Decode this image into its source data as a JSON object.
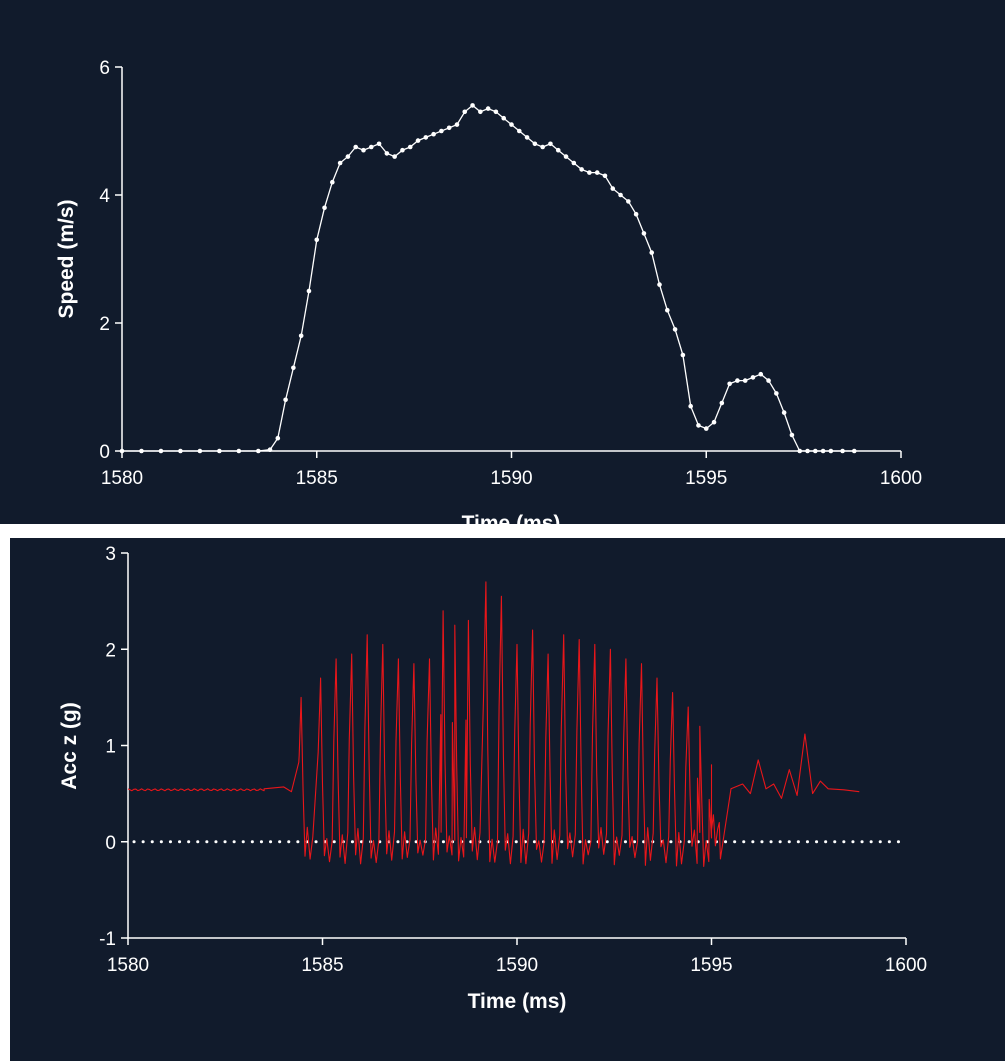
{
  "colors": {
    "background": "#111b2c",
    "axis": "#ffffff",
    "speed_series": "#ffffff",
    "acc_series": "#e8161a",
    "zero_line": "#ffffff"
  },
  "chart_data": [
    {
      "type": "line",
      "title": "",
      "xlabel": "Time (ms)",
      "ylabel": "Speed (m/s)",
      "xlim": [
        1580,
        1600
      ],
      "ylim": [
        0,
        6
      ],
      "xticks": [
        1580,
        1585,
        1590,
        1595,
        1600
      ],
      "yticks": [
        0,
        2,
        4,
        6
      ],
      "markers": true,
      "grid": false,
      "series": [
        {
          "x": [
            1580,
            1580.5,
            1581,
            1581.5,
            1582,
            1582.5,
            1583,
            1583.5,
            1583.8,
            1584.0,
            1584.2,
            1584.4,
            1584.6,
            1584.8,
            1585.0,
            1585.2,
            1585.4,
            1585.6,
            1585.8,
            1586.0,
            1586.2,
            1586.4,
            1586.6,
            1586.8,
            1587.0,
            1587.2,
            1587.4,
            1587.6,
            1587.8,
            1588.0,
            1588.2,
            1588.4,
            1588.6,
            1588.8,
            1589.0,
            1589.2,
            1589.4,
            1589.6,
            1589.8,
            1590.0,
            1590.2,
            1590.4,
            1590.6,
            1590.8,
            1591.0,
            1591.2,
            1591.4,
            1591.6,
            1591.8,
            1592.0,
            1592.2,
            1592.4,
            1592.6,
            1592.8,
            1593.0,
            1593.2,
            1593.4,
            1593.6,
            1593.8,
            1594.0,
            1594.2,
            1594.4,
            1594.6,
            1594.8,
            1595.0,
            1595.2,
            1595.4,
            1595.6,
            1595.8,
            1596.0,
            1596.2,
            1596.4,
            1596.6,
            1596.8,
            1597.0,
            1597.2,
            1597.4,
            1597.6,
            1597.8,
            1598.0,
            1598.2,
            1598.5,
            1598.8
          ],
          "y": [
            0,
            0,
            0,
            0,
            0,
            0,
            0,
            0,
            0.02,
            0.2,
            0.8,
            1.3,
            1.8,
            2.5,
            3.3,
            3.8,
            4.2,
            4.5,
            4.6,
            4.75,
            4.7,
            4.75,
            4.8,
            4.65,
            4.6,
            4.7,
            4.75,
            4.85,
            4.9,
            4.95,
            5.0,
            5.05,
            5.1,
            5.3,
            5.4,
            5.3,
            5.35,
            5.3,
            5.2,
            5.1,
            5.0,
            4.9,
            4.8,
            4.75,
            4.8,
            4.7,
            4.6,
            4.5,
            4.4,
            4.35,
            4.35,
            4.3,
            4.1,
            4.0,
            3.9,
            3.7,
            3.4,
            3.1,
            2.6,
            2.2,
            1.9,
            1.5,
            0.7,
            0.4,
            0.35,
            0.45,
            0.75,
            1.05,
            1.1,
            1.1,
            1.15,
            1.2,
            1.1,
            0.9,
            0.6,
            0.25,
            0,
            0,
            0,
            0,
            0,
            0,
            0
          ]
        }
      ]
    },
    {
      "type": "line",
      "title": "",
      "xlabel": "Time (ms)",
      "ylabel": "Acc z (g)",
      "xlim": [
        1580,
        1600
      ],
      "ylim": [
        -1,
        3
      ],
      "xticks": [
        1580,
        1585,
        1590,
        1595,
        1600
      ],
      "yticks": [
        -1,
        0,
        1,
        2,
        3
      ],
      "reference_line_y": 0,
      "grid": false,
      "series": [
        {
          "baseline_before": {
            "x": [
              1580,
              1583.5,
              1584.0,
              1584.2
            ],
            "y": [
              0.54,
              0.55,
              0.57,
              0.52
            ]
          },
          "oscillation": {
            "start": 1584.4,
            "end": 1595.0,
            "low": -0.15,
            "peak_x": [
              1584.45,
              1584.95,
              1585.35,
              1585.75,
              1586.15,
              1586.55,
              1586.95,
              1587.35,
              1587.75,
              1588.1,
              1588.4,
              1588.75,
              1589.2,
              1589.6,
              1590.0,
              1590.4,
              1590.8,
              1591.2,
              1591.6,
              1592.0,
              1592.4,
              1592.8,
              1593.2,
              1593.6,
              1594.0,
              1594.4,
              1594.7,
              1595.0
            ],
            "peak_y": [
              1.5,
              1.7,
              1.9,
              1.95,
              2.15,
              2.05,
              1.9,
              1.85,
              1.9,
              2.4,
              2.25,
              2.3,
              2.7,
              2.55,
              2.05,
              2.2,
              1.95,
              2.15,
              2.1,
              2.05,
              2.0,
              1.9,
              1.85,
              1.7,
              1.55,
              1.4,
              1.2,
              0.8
            ]
          },
          "tail_after": {
            "x": [
              1595.0,
              1595.2,
              1595.5,
              1595.8,
              1596.0,
              1596.2,
              1596.4,
              1596.6,
              1596.8,
              1597.0,
              1597.2,
              1597.4,
              1597.6,
              1597.8,
              1598.0,
              1598.4,
              1598.8
            ],
            "y": [
              0.12,
              0.2,
              0.55,
              0.6,
              0.5,
              0.85,
              0.55,
              0.6,
              0.45,
              0.75,
              0.48,
              1.12,
              0.5,
              0.63,
              0.55,
              0.54,
              0.52
            ]
          }
        }
      ]
    }
  ]
}
